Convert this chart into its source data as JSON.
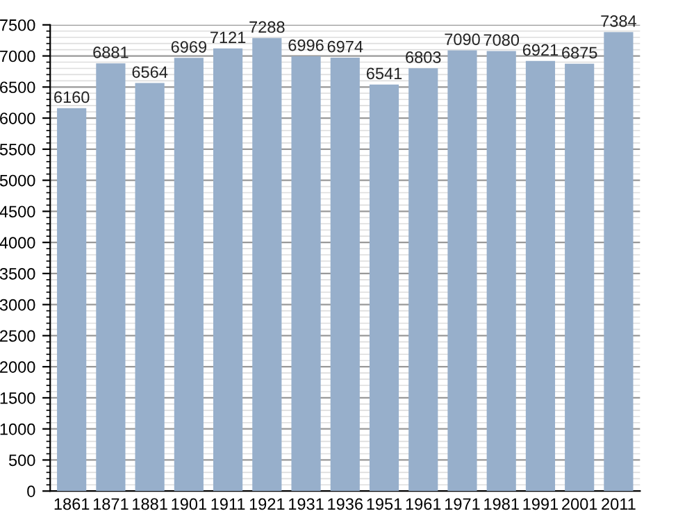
{
  "chart_data": {
    "type": "bar",
    "categories": [
      "1861",
      "1871",
      "1881",
      "1901",
      "1911",
      "1921",
      "1931",
      "1936",
      "1951",
      "1961",
      "1971",
      "1981",
      "1991",
      "2001",
      "2011"
    ],
    "values": [
      6160,
      6881,
      6564,
      6969,
      7121,
      7288,
      6996,
      6974,
      6541,
      6803,
      7090,
      7080,
      6921,
      6875,
      7384
    ],
    "color": "#97afcb",
    "ylim": [
      0,
      7500
    ],
    "yticks": [
      0,
      500,
      1000,
      1500,
      2000,
      2500,
      3000,
      3500,
      4000,
      4500,
      5000,
      5500,
      6000,
      6500,
      7000,
      7500
    ],
    "grid": "y",
    "data_labels": true
  }
}
